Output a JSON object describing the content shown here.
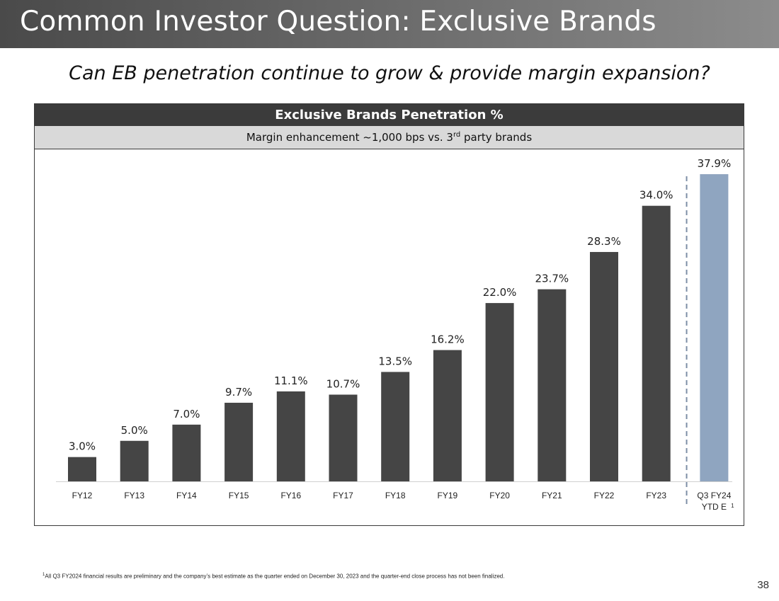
{
  "slide": {
    "title": "Common Investor Question: Exclusive Brands",
    "subtitle": "Can EB penetration continue to grow & provide margin expansion?",
    "panel_title": "Exclusive Brands Penetration %",
    "panel_subtitle_pre": "Margin enhancement ~1,000 bps vs. 3",
    "panel_subtitle_sup": "rd",
    "panel_subtitle_post": " party brands",
    "footnote_marker": "1",
    "footnote_text": "All Q3 FY2024 financial results are preliminary and the company’s best estimate as the quarter ended on December 30, 2023 and the quarter-end close process has not been finalized.",
    "page_number": "38"
  },
  "chart_data": {
    "type": "bar",
    "title": "Exclusive Brands Penetration %",
    "subtitle": "Margin enhancement ~1,000 bps vs. 3rd party brands",
    "categories": [
      "FY12",
      "FY13",
      "FY14",
      "FY15",
      "FY16",
      "FY17",
      "FY18",
      "FY19",
      "FY20",
      "FY21",
      "FY22",
      "FY23",
      "Q3 FY24 YTD E"
    ],
    "category_lines": [
      [
        "FY12"
      ],
      [
        "FY13"
      ],
      [
        "FY14"
      ],
      [
        "FY15"
      ],
      [
        "FY16"
      ],
      [
        "FY17"
      ],
      [
        "FY18"
      ],
      [
        "FY19"
      ],
      [
        "FY20"
      ],
      [
        "FY21"
      ],
      [
        "FY22"
      ],
      [
        "FY23"
      ],
      [
        "Q3 FY24",
        "YTD E"
      ]
    ],
    "category_superscripts": [
      "",
      "",
      "",
      "",
      "",
      "",
      "",
      "",
      "",
      "",
      "",
      "",
      "1"
    ],
    "values": [
      3.0,
      5.0,
      7.0,
      9.7,
      11.1,
      10.7,
      13.5,
      16.2,
      22.0,
      23.7,
      28.3,
      34.0,
      37.9
    ],
    "labels": [
      "3.0%",
      "5.0%",
      "7.0%",
      "9.7%",
      "11.1%",
      "10.7%",
      "13.5%",
      "16.2%",
      "22.0%",
      "23.7%",
      "28.3%",
      "34.0%",
      "37.9%"
    ],
    "ylim": [
      0,
      40
    ],
    "grid": false,
    "bar_color": "#454545",
    "highlight_color": "#8fa5c0",
    "highlight_index": 12,
    "divider_before_index": 12,
    "xlabel": "",
    "ylabel": ""
  }
}
